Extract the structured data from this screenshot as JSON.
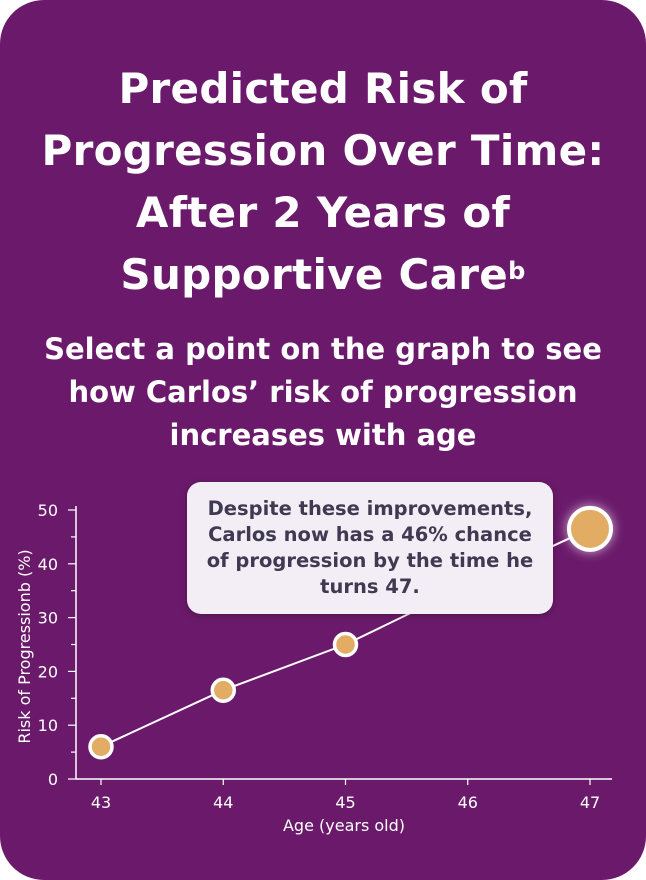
{
  "card": {
    "title": "Predicted Risk of Progression Over Time: After 2 Years of Supportive Care",
    "title_sup": "b",
    "subtitle": "Select a point on the graph to see how Carlos’ risk of progression increases with age"
  },
  "callout": {
    "text": "Despite these improvements, Carlos now has a 46% chance of progression by the time he turns 47."
  },
  "colors": {
    "background": "#6b1a6b",
    "point_fill": "#e2ac64",
    "axis": "#ffffff",
    "callout_bg": "#f3eef5",
    "callout_text": "#3f3a52"
  },
  "chart_data": {
    "type": "line",
    "title": "",
    "xlabel": "Age (years old)",
    "ylabel": "Risk of Progressionb (%)",
    "x": [
      43,
      44,
      45,
      46,
      47
    ],
    "y": [
      6,
      16.5,
      25,
      36,
      46.5
    ],
    "xlim": [
      42.8,
      48
    ],
    "ylim": [
      0,
      50
    ],
    "yticks": [
      0,
      10,
      20,
      30,
      40,
      50
    ],
    "xticks": [
      43,
      44,
      45,
      46,
      47
    ],
    "selected_x": 47,
    "grid": false
  }
}
